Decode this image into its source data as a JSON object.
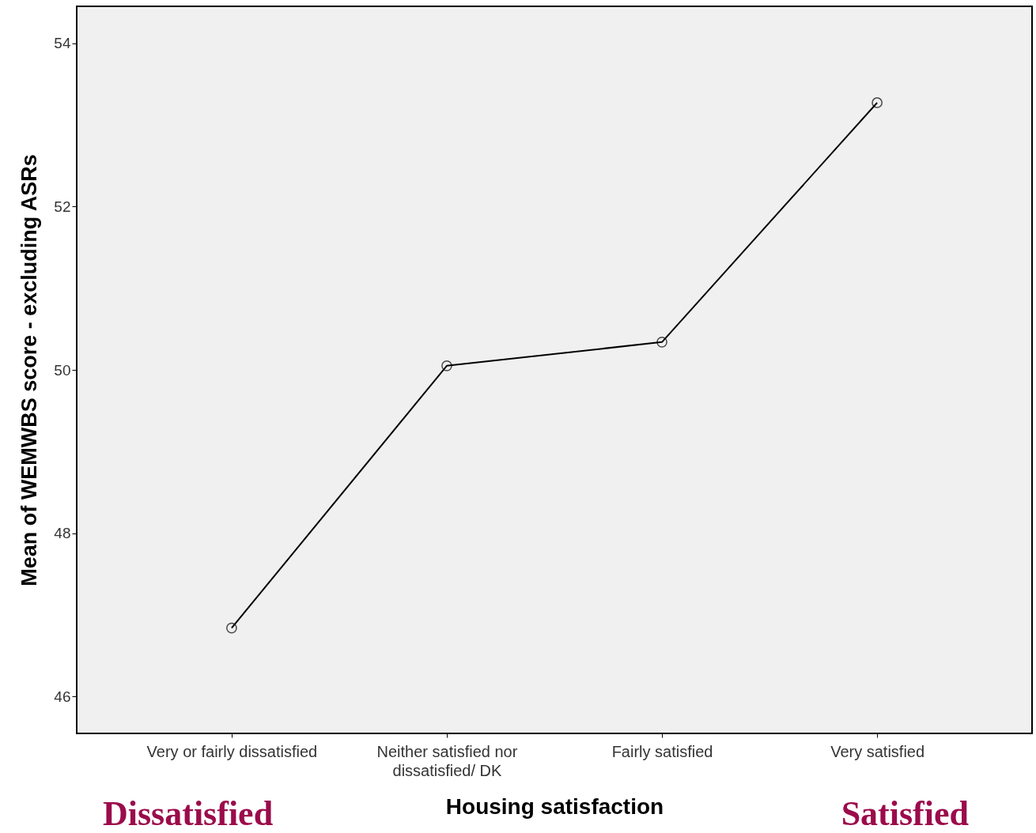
{
  "chart_data": {
    "type": "line",
    "xlabel": "Housing satisfaction",
    "ylabel": "Mean of WEMWBS score - excluding ASRs",
    "categories": [
      "Very or fairly dissatisfied",
      "Neither satisfied nor dissatisfied/ DK",
      "Fairly satisfied",
      "Very satisfied"
    ],
    "series": [
      {
        "color": "#000000",
        "values": [
          46.84,
          50.05,
          50.34,
          53.27
        ]
      }
    ],
    "ylim": [
      45.55,
      54.45
    ],
    "yticks": [
      46,
      48,
      50,
      52,
      54
    ],
    "grid": false,
    "marker": "circle",
    "line_style": "solid",
    "annotations": [
      "Dissatisfied",
      "Satisfied"
    ]
  }
}
